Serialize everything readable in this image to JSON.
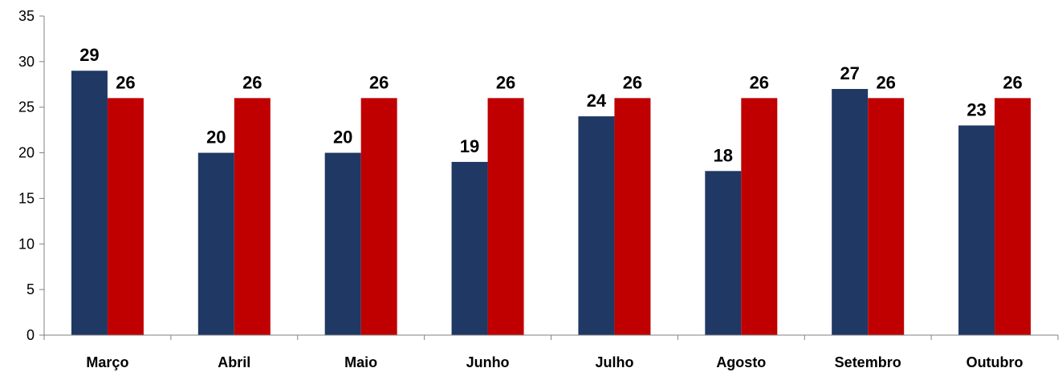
{
  "chart_data": {
    "type": "bar",
    "categories": [
      "Março",
      "Abril",
      "Maio",
      "Junho",
      "Julho",
      "Agosto",
      "Setembro",
      "Outubro"
    ],
    "series": [
      {
        "values": [
          29,
          20,
          20,
          19,
          24,
          18,
          27,
          23
        ],
        "color": "#1F3864"
      },
      {
        "values": [
          26,
          26,
          26,
          26,
          26,
          26,
          26,
          26
        ],
        "color": "#C00000"
      }
    ],
    "ylim": [
      0,
      35
    ],
    "yticks": [
      0,
      5,
      10,
      15,
      20,
      25,
      30,
      35
    ],
    "title": "",
    "xlabel": "",
    "ylabel": "",
    "grid": false,
    "data_labels": true
  }
}
